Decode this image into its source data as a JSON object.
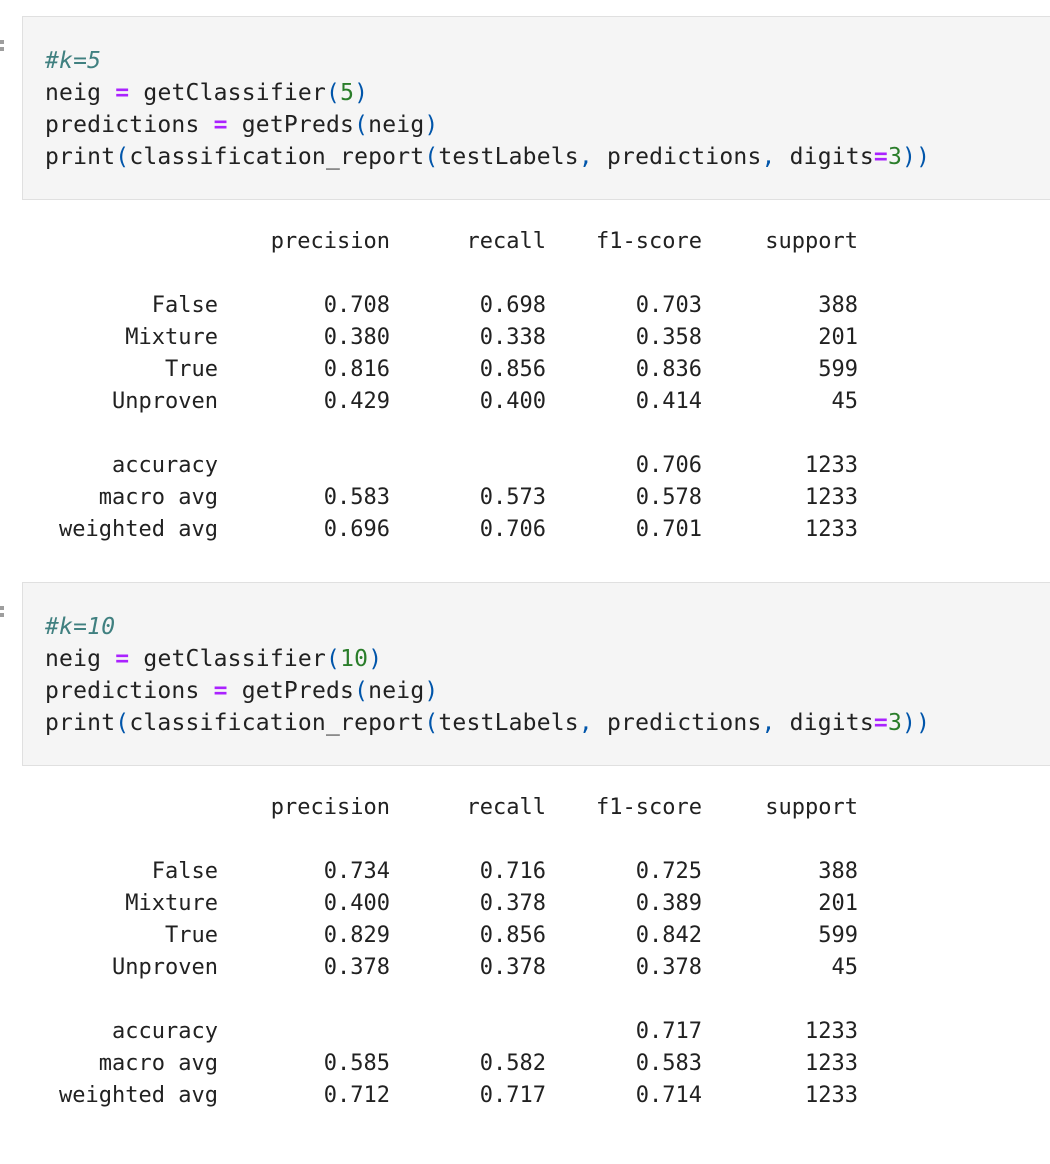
{
  "cells": [
    {
      "code": {
        "comment": "#k=5",
        "line2": {
          "var": "neig",
          "op": "=",
          "func": "getClassifier",
          "arg": "5"
        },
        "line3": {
          "var": "predictions",
          "op": "=",
          "func": "getPreds",
          "arg": "neig"
        },
        "line4": {
          "func": "print",
          "inner_func": "classification_report",
          "arg1": "testLabels",
          "arg2": "predictions",
          "kw": "digits",
          "kw_op": "=",
          "kw_val": "3"
        }
      },
      "report": {
        "headers": [
          "precision",
          "recall",
          "f1-score",
          "support"
        ],
        "rows": [
          {
            "label": "False",
            "precision": "0.708",
            "recall": "0.698",
            "f1": "0.703",
            "support": "388"
          },
          {
            "label": "Mixture",
            "precision": "0.380",
            "recall": "0.338",
            "f1": "0.358",
            "support": "201"
          },
          {
            "label": "True",
            "precision": "0.816",
            "recall": "0.856",
            "f1": "0.836",
            "support": "599"
          },
          {
            "label": "Unproven",
            "precision": "0.429",
            "recall": "0.400",
            "f1": "0.414",
            "support": "45"
          }
        ],
        "accuracy": {
          "label": "accuracy",
          "f1": "0.706",
          "support": "1233"
        },
        "macro": {
          "label": "macro avg",
          "precision": "0.583",
          "recall": "0.573",
          "f1": "0.578",
          "support": "1233"
        },
        "weighted": {
          "label": "weighted avg",
          "precision": "0.696",
          "recall": "0.706",
          "f1": "0.701",
          "support": "1233"
        }
      }
    },
    {
      "code": {
        "comment": "#k=10",
        "line2": {
          "var": "neig",
          "op": "=",
          "func": "getClassifier",
          "arg": "10"
        },
        "line3": {
          "var": "predictions",
          "op": "=",
          "func": "getPreds",
          "arg": "neig"
        },
        "line4": {
          "func": "print",
          "inner_func": "classification_report",
          "arg1": "testLabels",
          "arg2": "predictions",
          "kw": "digits",
          "kw_op": "=",
          "kw_val": "3"
        }
      },
      "report": {
        "headers": [
          "precision",
          "recall",
          "f1-score",
          "support"
        ],
        "rows": [
          {
            "label": "False",
            "precision": "0.734",
            "recall": "0.716",
            "f1": "0.725",
            "support": "388"
          },
          {
            "label": "Mixture",
            "precision": "0.400",
            "recall": "0.378",
            "f1": "0.389",
            "support": "201"
          },
          {
            "label": "True",
            "precision": "0.829",
            "recall": "0.856",
            "f1": "0.842",
            "support": "599"
          },
          {
            "label": "Unproven",
            "precision": "0.378",
            "recall": "0.378",
            "f1": "0.378",
            "support": "45"
          }
        ],
        "accuracy": {
          "label": "accuracy",
          "f1": "0.717",
          "support": "1233"
        },
        "macro": {
          "label": "macro avg",
          "precision": "0.585",
          "recall": "0.582",
          "f1": "0.583",
          "support": "1233"
        },
        "weighted": {
          "label": "weighted avg",
          "precision": "0.712",
          "recall": "0.717",
          "f1": "0.714",
          "support": "1233"
        }
      }
    }
  ]
}
